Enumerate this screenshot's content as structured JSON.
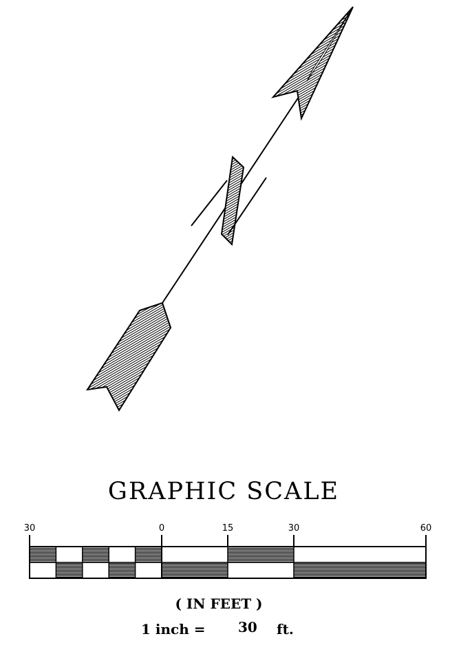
{
  "graphic_scale": {
    "title": "GRAPHIC SCALE",
    "ticks": [
      {
        "label": "30",
        "feet": -30
      },
      {
        "label": "0",
        "feet": 0
      },
      {
        "label": "15",
        "feet": 15
      },
      {
        "label": "30",
        "feet": 30
      },
      {
        "label": "60",
        "feet": 60
      }
    ],
    "units_label": "( IN FEET )",
    "ratio_prefix": "1 inch =",
    "ratio_value": "30",
    "ratio_unit": "ft."
  },
  "north_arrow": {
    "icon": "north-arrow-icon"
  },
  "colors": {
    "ink": "#000000",
    "paper": "#ffffff"
  }
}
